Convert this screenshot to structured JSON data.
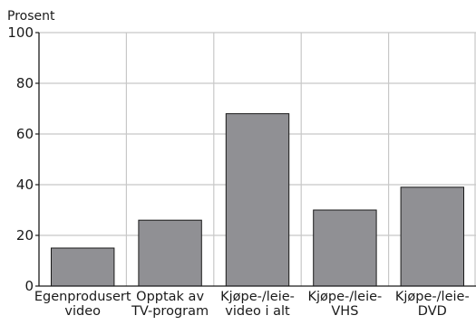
{
  "chart_data": {
    "type": "bar",
    "title": "",
    "ylabel": "Prosent",
    "xlabel": "",
    "ylim": [
      0,
      100
    ],
    "yticks": [
      0,
      20,
      40,
      60,
      80,
      100
    ],
    "grid": true,
    "categories": [
      [
        "Egenprodusert",
        "video"
      ],
      [
        "Opptak av",
        "TV-program"
      ],
      [
        "Kjøpe-/leie-",
        "video i alt"
      ],
      [
        "Kjøpe-/leie-",
        "VHS"
      ],
      [
        "Kjøpe-/leie-",
        "DVD"
      ]
    ],
    "values": [
      15,
      26,
      68,
      30,
      39
    ],
    "colors": {
      "bar": "#909094",
      "bar_stroke": "#1a1a1a",
      "grid": "#c8c8c8",
      "axis": "#1a1a1a"
    }
  }
}
